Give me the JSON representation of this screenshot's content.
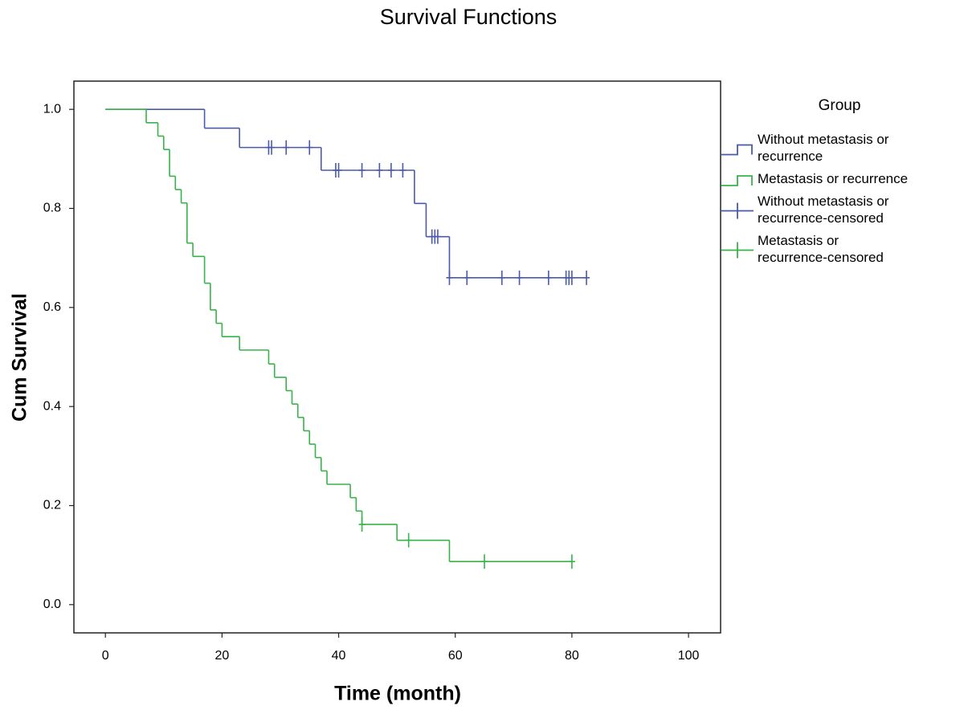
{
  "chart_data": {
    "type": "survival-step",
    "title": "Survival Functions",
    "x_label": "Time (month)",
    "y_label": "Cum Survival",
    "legend_title": "Group",
    "xlim": [
      -5.4,
      105.5
    ],
    "ylim": [
      -0.057,
      1.057
    ],
    "xticks": [
      0,
      20,
      40,
      60,
      80,
      100
    ],
    "yticks": [
      {
        "value": 0,
        "label": "0.0"
      },
      {
        "value": 0.2,
        "label": "0.2"
      },
      {
        "value": 0.4,
        "label": "0.4"
      },
      {
        "value": 0.6,
        "label": "0.6"
      },
      {
        "value": 0.8,
        "label": "0.8"
      },
      {
        "value": 1,
        "label": "1.0"
      }
    ],
    "series": [
      {
        "name": "Without metastasis or recurrence",
        "color": "#4a5aa8",
        "style": "step",
        "x": [
          0,
          17,
          23,
          37,
          53,
          55,
          59,
          82.5
        ],
        "values": [
          1,
          0.962,
          0.923,
          0.877,
          0.81,
          0.743,
          0.66,
          0.66
        ]
      },
      {
        "name": "Metastasis or recurrence",
        "color": "#38b24a",
        "style": "step",
        "x": [
          0,
          7,
          9,
          10,
          11,
          12,
          13,
          14,
          15,
          17,
          18,
          19,
          20,
          23,
          28,
          29,
          31,
          32,
          33,
          34,
          35,
          36,
          37,
          38,
          42,
          43,
          44,
          50,
          59,
          80
        ],
        "values": [
          1,
          0.973,
          0.946,
          0.919,
          0.865,
          0.838,
          0.811,
          0.73,
          0.703,
          0.649,
          0.595,
          0.568,
          0.541,
          0.514,
          0.486,
          0.459,
          0.432,
          0.405,
          0.378,
          0.351,
          0.324,
          0.297,
          0.27,
          0.243,
          0.216,
          0.189,
          0.162,
          0.13,
          0.087,
          0.087
        ]
      },
      {
        "name": "Without metastasis or recurrence-censored",
        "color": "#4a5aa8",
        "style": "censored",
        "x": [
          28,
          28.5,
          31,
          35,
          39.5,
          40,
          44,
          47,
          49,
          51,
          56,
          56.5,
          57,
          59,
          62,
          68,
          71,
          76,
          79,
          79.5,
          80,
          82.5
        ],
        "values": [
          0.923,
          0.923,
          0.923,
          0.923,
          0.877,
          0.877,
          0.877,
          0.877,
          0.877,
          0.877,
          0.743,
          0.743,
          0.743,
          0.66,
          0.66,
          0.66,
          0.66,
          0.66,
          0.66,
          0.66,
          0.66,
          0.66
        ]
      },
      {
        "name": "Metastasis or recurrence-censored",
        "color": "#38b24a",
        "style": "censored",
        "x": [
          44,
          52,
          65,
          80
        ],
        "values": [
          0.162,
          0.13,
          0.087,
          0.087
        ]
      }
    ]
  }
}
